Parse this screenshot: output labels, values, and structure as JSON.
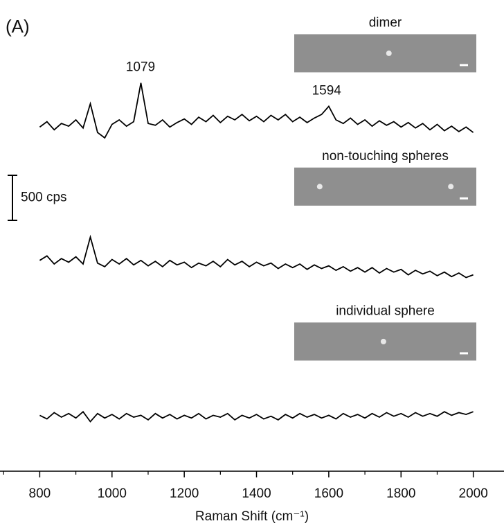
{
  "chart_data": {
    "type": "line",
    "panel_label": "(A)",
    "xlabel": "Raman Shift (cm⁻¹)",
    "x": [
      800,
      820,
      840,
      860,
      880,
      900,
      920,
      940,
      960,
      980,
      1000,
      1020,
      1040,
      1060,
      1080,
      1100,
      1120,
      1140,
      1160,
      1180,
      1200,
      1220,
      1240,
      1260,
      1280,
      1300,
      1320,
      1340,
      1360,
      1380,
      1400,
      1420,
      1440,
      1460,
      1480,
      1500,
      1520,
      1540,
      1560,
      1580,
      1600,
      1620,
      1640,
      1660,
      1680,
      1700,
      1720,
      1740,
      1760,
      1780,
      1800,
      1820,
      1840,
      1860,
      1880,
      1900,
      1920,
      1940,
      1960,
      1980,
      2000
    ],
    "series": [
      {
        "name": "dimer",
        "color": "#000000",
        "values": [
          3820,
          3880,
          3790,
          3860,
          3830,
          3900,
          3810,
          4080,
          3760,
          3700,
          3850,
          3900,
          3830,
          3880,
          4310,
          3860,
          3840,
          3900,
          3820,
          3870,
          3910,
          3850,
          3930,
          3880,
          3950,
          3870,
          3940,
          3900,
          3960,
          3890,
          3940,
          3880,
          3950,
          3900,
          3960,
          3880,
          3930,
          3870,
          3920,
          3960,
          4050,
          3900,
          3860,
          3920,
          3850,
          3900,
          3830,
          3890,
          3840,
          3880,
          3820,
          3870,
          3810,
          3860,
          3790,
          3850,
          3780,
          3830,
          3770,
          3820,
          3760
        ]
      },
      {
        "name": "non-touching spheres",
        "color": "#000000",
        "values": [
          2340,
          2390,
          2300,
          2360,
          2320,
          2380,
          2300,
          2600,
          2310,
          2270,
          2350,
          2300,
          2360,
          2290,
          2340,
          2280,
          2330,
          2270,
          2340,
          2290,
          2320,
          2260,
          2310,
          2280,
          2330,
          2270,
          2350,
          2290,
          2330,
          2270,
          2320,
          2280,
          2310,
          2250,
          2300,
          2260,
          2300,
          2240,
          2290,
          2250,
          2280,
          2230,
          2270,
          2220,
          2260,
          2210,
          2260,
          2200,
          2250,
          2210,
          2240,
          2180,
          2230,
          2190,
          2220,
          2170,
          2210,
          2160,
          2200,
          2150,
          2180
        ]
      },
      {
        "name": "individual sphere",
        "color": "#000000",
        "values": [
          620,
          580,
          650,
          600,
          640,
          590,
          660,
          550,
          640,
          590,
          630,
          580,
          640,
          600,
          620,
          570,
          640,
          590,
          630,
          580,
          620,
          590,
          640,
          580,
          620,
          600,
          640,
          570,
          620,
          590,
          630,
          580,
          610,
          570,
          630,
          590,
          640,
          600,
          630,
          590,
          620,
          580,
          640,
          600,
          630,
          590,
          640,
          600,
          650,
          610,
          640,
          600,
          650,
          610,
          640,
          610,
          660,
          620,
          650,
          630,
          660
        ]
      }
    ],
    "peak_labels": [
      1079,
      1594
    ],
    "scale_bar": {
      "value": 500,
      "label": "500 cps"
    },
    "xlim": [
      690,
      2085
    ],
    "ylim": [
      0,
      5100
    ],
    "xticks": [
      800,
      1000,
      1200,
      1400,
      1600,
      1800,
      2000
    ],
    "xminorticks": [
      700,
      900,
      1100,
      1300,
      1500,
      1700,
      1900
    ]
  }
}
